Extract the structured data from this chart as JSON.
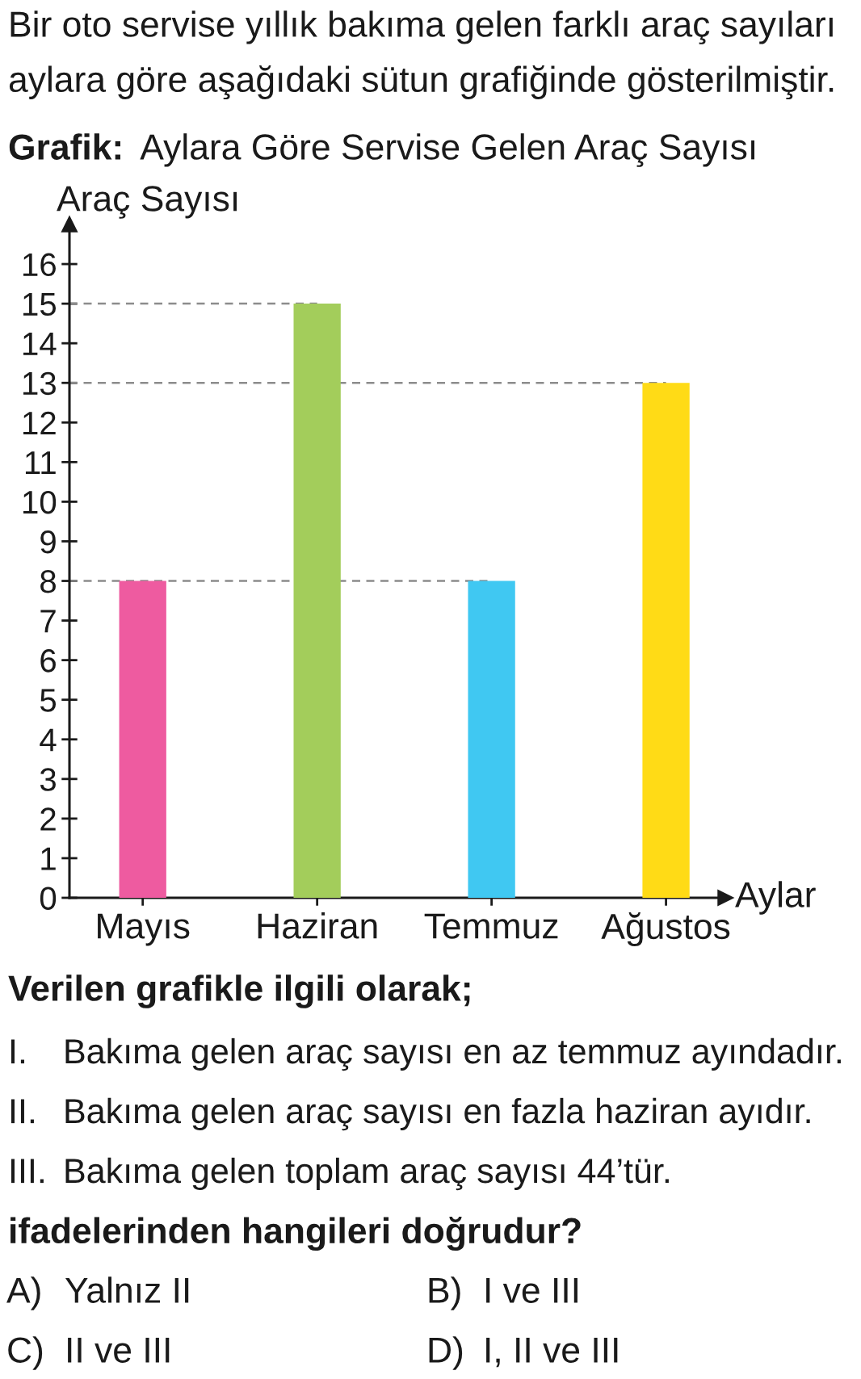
{
  "chart_data": {
    "type": "bar",
    "title": "Grafik:",
    "subtitle": "Aylara Göre Servise Gelen Araç Sayısı",
    "xlabel": "Aylar",
    "ylabel": "Araç Sayısı",
    "categories": [
      "Mayıs",
      "Haziran",
      "Temmuz",
      "Ağustos"
    ],
    "values": [
      8,
      15,
      8,
      13
    ],
    "colors": [
      "#ee5ba0",
      "#a3cd5b",
      "#40c8f2",
      "#ffdb16"
    ],
    "ylim": [
      0,
      17
    ],
    "yticks": [
      0,
      1,
      2,
      3,
      4,
      5,
      6,
      7,
      8,
      9,
      10,
      11,
      12,
      13,
      14,
      15,
      16
    ],
    "ref_lines": [
      {
        "axis": "y",
        "value": 15,
        "color": "#8c8c8c",
        "line_style": "dashed"
      },
      {
        "axis": "y",
        "value": 13,
        "color": "#8c8c8c",
        "line_style": "dashed"
      },
      {
        "axis": "y",
        "value": 8,
        "color": "#8c8c8c",
        "line_style": "dashed"
      }
    ],
    "annotations": [
      "Bir oto servise yıllık bakıma gelen farklı araç sayıları",
      "aylara göre aşağıdaki sütun grafiğinde gösterilmiştir.",
      "Verilen grafikle ilgili olarak;",
      "I.",
      "Bakıma gelen araç sayısı en az temmuz ayındadır.",
      "II.",
      "Bakıma gelen araç sayısı en fazla haziran ayıdır.",
      "III.",
      "Bakıma gelen toplam araç sayısı 44’tür.",
      "ifadelerinden hangileri doğrudur?",
      "A)",
      "Yalnız II",
      "B)",
      "I ve III",
      "C)",
      "II ve III",
      "D)",
      "I, II ve III"
    ]
  }
}
